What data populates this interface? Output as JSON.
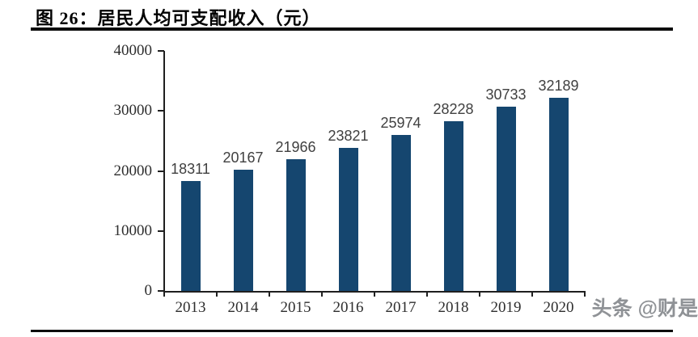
{
  "figure": {
    "label_and_title": "图 26：居民人均可支配收入（元）",
    "watermark": "头条 @财是",
    "watermark_color": "#8f9296",
    "rule_color": "#0d0d0d"
  },
  "chart_data": {
    "type": "bar",
    "title": "居民人均可支配收入（元）",
    "categories": [
      "2013",
      "2014",
      "2015",
      "2016",
      "2017",
      "2018",
      "2019",
      "2020"
    ],
    "values": [
      18311,
      20167,
      21966,
      23821,
      25974,
      28228,
      30733,
      32189
    ],
    "data_labels_shown": true,
    "xlabel": "",
    "ylabel": "",
    "ylim": [
      0,
      40000
    ],
    "yticks": [
      0,
      10000,
      20000,
      30000,
      40000
    ],
    "grid": false,
    "legend": "none",
    "colors": {
      "bar": "#15466F",
      "axis": "#1f1f1f",
      "value_label": "#404040",
      "tick_label": "#2e2e2e"
    }
  }
}
